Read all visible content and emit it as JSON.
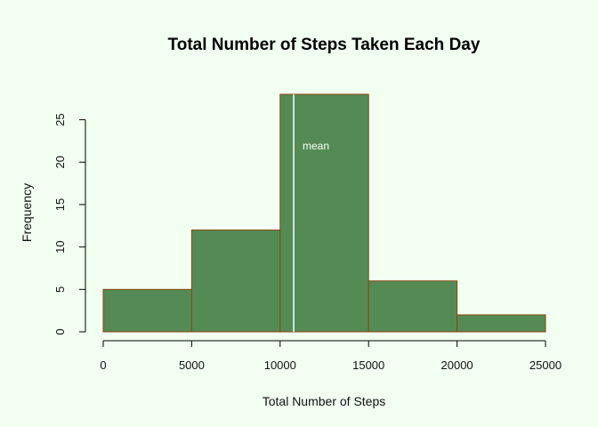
{
  "chart_data": {
    "type": "bar",
    "subtype": "histogram",
    "title": "Total Number of Steps Taken Each Day",
    "xlabel": "Total Number of Steps",
    "ylabel": "Frequency",
    "bins": [
      {
        "start": 0,
        "end": 5000,
        "count": 5
      },
      {
        "start": 5000,
        "end": 10000,
        "count": 12
      },
      {
        "start": 10000,
        "end": 15000,
        "count": 28
      },
      {
        "start": 15000,
        "end": 20000,
        "count": 6
      },
      {
        "start": 20000,
        "end": 25000,
        "count": 2
      }
    ],
    "xlim": [
      0,
      25000
    ],
    "ylim": [
      0,
      28
    ],
    "x_ticks": [
      0,
      5000,
      10000,
      15000,
      20000,
      25000
    ],
    "y_ticks": [
      0,
      5,
      10,
      15,
      20,
      25
    ],
    "grid": false,
    "bar_color": "#548b54",
    "bar_border_color": "#8b4513",
    "mean_line": {
      "value": 10766,
      "label": "mean",
      "color": "#ffffff"
    }
  }
}
